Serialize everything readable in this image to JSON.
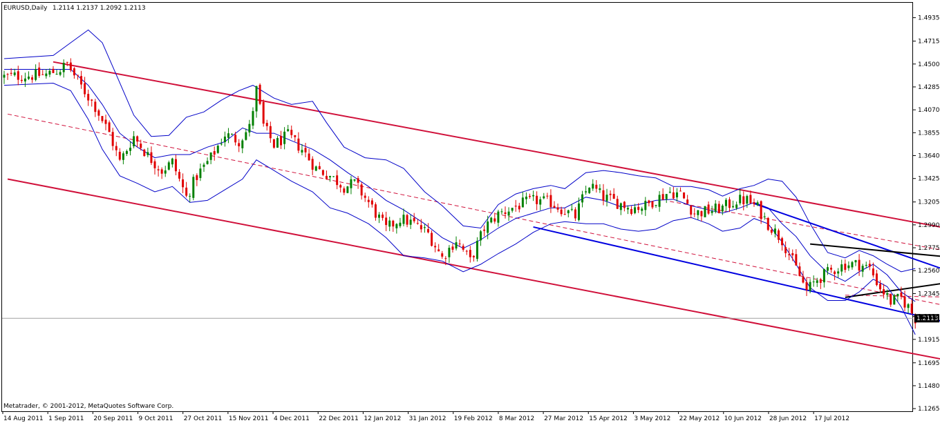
{
  "window": {
    "title": "EURUSD,Daily",
    "ohlc": "1.2114 1.2137 1.2092 1.2113",
    "copyright": "Metatrader, © 2001-2012, MetaQuotes Software Corp."
  },
  "colors": {
    "background": "#ffffff",
    "axis": "#000000",
    "bull": "#008000",
    "bear": "#e00000",
    "channel": "#d0103a",
    "bollinger": "#0000c8",
    "wedge": "#0000e0",
    "triangle": "#000000",
    "price_line": "#a0a0a0",
    "price_label_bg": "#000000",
    "price_label_fg": "#ffffff"
  },
  "chart_data": {
    "type": "candlestick",
    "symbol": "EURUSD",
    "timeframe": "Daily",
    "last_price": "1.2113",
    "ylim": [
      1.124,
      1.5075
    ],
    "y_ticks": [
      "1.4935",
      "1.4715",
      "1.4500",
      "1.4285",
      "1.4070",
      "1.3855",
      "1.3640",
      "1.3425",
      "1.3205",
      "1.2990",
      "1.2775",
      "1.2560",
      "1.2345",
      "1.2130",
      "1.1915",
      "1.1695",
      "1.1480",
      "1.1265"
    ],
    "x_labels": [
      "14 Aug 2011",
      "1 Sep 2011",
      "20 Sep 2011",
      "9 Oct 2011",
      "27 Oct 2011",
      "15 Nov 2011",
      "4 Dec 2011",
      "22 Dec 2011",
      "12 Jan 2012",
      "31 Jan 2012",
      "19 Feb 2012",
      "8 Mar 2012",
      "27 Mar 2012",
      "15 Apr 2012",
      "3 May 2012",
      "22 May 2012",
      "10 Jun 2012",
      "28 Jun 2012",
      "17 Jul 2012"
    ],
    "bar_count": 250,
    "close_path": [
      [
        0,
        1.438
      ],
      [
        12,
        1.44
      ],
      [
        16,
        1.445
      ],
      [
        18,
        1.45
      ],
      [
        22,
        1.429
      ],
      [
        26,
        1.41
      ],
      [
        30,
        1.385
      ],
      [
        33,
        1.358
      ],
      [
        37,
        1.382
      ],
      [
        41,
        1.364
      ],
      [
        45,
        1.35
      ],
      [
        48,
        1.358
      ],
      [
        52,
        1.325
      ],
      [
        55,
        1.345
      ],
      [
        59,
        1.362
      ],
      [
        63,
        1.384
      ],
      [
        67,
        1.378
      ],
      [
        70,
        1.39
      ],
      [
        72,
        1.426
      ],
      [
        74,
        1.392
      ],
      [
        77,
        1.374
      ],
      [
        81,
        1.383
      ],
      [
        85,
        1.37
      ],
      [
        89,
        1.352
      ],
      [
        93,
        1.345
      ],
      [
        97,
        1.335
      ],
      [
        100,
        1.338
      ],
      [
        104,
        1.32
      ],
      [
        109,
        1.295
      ],
      [
        113,
        1.305
      ],
      [
        117,
        1.3
      ],
      [
        121,
        1.291
      ],
      [
        125,
        1.268
      ],
      [
        129,
        1.285
      ],
      [
        133,
        1.265
      ],
      [
        137,
        1.296
      ],
      [
        141,
        1.309
      ],
      [
        145,
        1.315
      ],
      [
        149,
        1.32
      ],
      [
        152,
        1.322
      ],
      [
        156,
        1.32
      ],
      [
        160,
        1.312
      ],
      [
        163,
        1.307
      ],
      [
        165,
        1.323
      ],
      [
        167,
        1.337
      ],
      [
        171,
        1.325
      ],
      [
        175,
        1.32
      ],
      [
        179,
        1.315
      ],
      [
        183,
        1.317
      ],
      [
        187,
        1.325
      ],
      [
        190,
        1.33
      ],
      [
        193,
        1.328
      ],
      [
        197,
        1.31
      ],
      [
        201,
        1.312
      ],
      [
        205,
        1.315
      ],
      [
        209,
        1.322
      ],
      [
        212,
        1.322
      ],
      [
        215,
        1.315
      ],
      [
        218,
        1.3
      ],
      [
        222,
        1.285
      ],
      [
        226,
        1.258
      ],
      [
        229,
        1.237
      ],
      [
        232,
        1.248
      ],
      [
        236,
        1.256
      ],
      [
        240,
        1.262
      ],
      [
        244,
        1.262
      ],
      [
        247,
        1.258
      ],
      [
        250,
        1.24
      ],
      [
        253,
        1.227
      ],
      [
        256,
        1.23
      ],
      [
        258,
        1.222
      ],
      [
        260,
        1.2113
      ]
    ],
    "bollinger_bands": {
      "upper": [
        [
          0,
          1.455
        ],
        [
          14,
          1.458
        ],
        [
          19,
          1.47
        ],
        [
          24,
          1.482
        ],
        [
          28,
          1.47
        ],
        [
          32,
          1.44
        ],
        [
          37,
          1.402
        ],
        [
          42,
          1.382
        ],
        [
          47,
          1.383
        ],
        [
          52,
          1.4
        ],
        [
          57,
          1.405
        ],
        [
          62,
          1.416
        ],
        [
          67,
          1.425
        ],
        [
          71,
          1.43
        ],
        [
          77,
          1.418
        ],
        [
          82,
          1.412
        ],
        [
          88,
          1.415
        ],
        [
          92,
          1.395
        ],
        [
          97,
          1.372
        ],
        [
          103,
          1.362
        ],
        [
          109,
          1.36
        ],
        [
          114,
          1.352
        ],
        [
          120,
          1.33
        ],
        [
          125,
          1.317
        ],
        [
          131,
          1.298
        ],
        [
          136,
          1.296
        ],
        [
          141,
          1.318
        ],
        [
          146,
          1.328
        ],
        [
          151,
          1.333
        ],
        [
          156,
          1.336
        ],
        [
          160,
          1.333
        ],
        [
          166,
          1.348
        ],
        [
          171,
          1.35
        ],
        [
          176,
          1.348
        ],
        [
          181,
          1.345
        ],
        [
          186,
          1.343
        ],
        [
          191,
          1.335
        ],
        [
          196,
          1.335
        ],
        [
          201,
          1.332
        ],
        [
          205,
          1.326
        ],
        [
          210,
          1.333
        ],
        [
          214,
          1.336
        ],
        [
          218,
          1.342
        ],
        [
          222,
          1.34
        ],
        [
          226,
          1.325
        ],
        [
          230,
          1.3
        ],
        [
          235,
          1.273
        ],
        [
          240,
          1.268
        ],
        [
          244,
          1.275
        ],
        [
          248,
          1.27
        ],
        [
          252,
          1.262
        ],
        [
          256,
          1.255
        ],
        [
          260,
          1.258
        ]
      ],
      "middle": [
        [
          0,
          1.445
        ],
        [
          14,
          1.445
        ],
        [
          19,
          1.445
        ],
        [
          24,
          1.43
        ],
        [
          28,
          1.412
        ],
        [
          33,
          1.385
        ],
        [
          38,
          1.372
        ],
        [
          43,
          1.362
        ],
        [
          48,
          1.365
        ],
        [
          53,
          1.365
        ],
        [
          58,
          1.372
        ],
        [
          63,
          1.377
        ],
        [
          68,
          1.39
        ],
        [
          72,
          1.385
        ],
        [
          77,
          1.385
        ],
        [
          82,
          1.378
        ],
        [
          88,
          1.37
        ],
        [
          93,
          1.36
        ],
        [
          98,
          1.348
        ],
        [
          104,
          1.335
        ],
        [
          109,
          1.322
        ],
        [
          114,
          1.313
        ],
        [
          120,
          1.3
        ],
        [
          125,
          1.287
        ],
        [
          131,
          1.277
        ],
        [
          136,
          1.285
        ],
        [
          141,
          1.296
        ],
        [
          146,
          1.305
        ],
        [
          151,
          1.31
        ],
        [
          156,
          1.315
        ],
        [
          160,
          1.315
        ],
        [
          166,
          1.325
        ],
        [
          171,
          1.322
        ],
        [
          176,
          1.316
        ],
        [
          181,
          1.318
        ],
        [
          186,
          1.322
        ],
        [
          191,
          1.323
        ],
        [
          196,
          1.317
        ],
        [
          201,
          1.313
        ],
        [
          205,
          1.31
        ],
        [
          210,
          1.315
        ],
        [
          214,
          1.32
        ],
        [
          218,
          1.315
        ],
        [
          222,
          1.3
        ],
        [
          226,
          1.288
        ],
        [
          230,
          1.27
        ],
        [
          235,
          1.254
        ],
        [
          240,
          1.246
        ],
        [
          244,
          1.255
        ],
        [
          248,
          1.262
        ],
        [
          252,
          1.252
        ],
        [
          256,
          1.236
        ],
        [
          260,
          1.227
        ]
      ],
      "lower": [
        [
          0,
          1.43
        ],
        [
          14,
          1.432
        ],
        [
          19,
          1.425
        ],
        [
          24,
          1.398
        ],
        [
          28,
          1.37
        ],
        [
          33,
          1.345
        ],
        [
          38,
          1.338
        ],
        [
          43,
          1.33
        ],
        [
          48,
          1.335
        ],
        [
          53,
          1.32
        ],
        [
          58,
          1.322
        ],
        [
          63,
          1.332
        ],
        [
          68,
          1.342
        ],
        [
          72,
          1.36
        ],
        [
          77,
          1.35
        ],
        [
          82,
          1.34
        ],
        [
          88,
          1.33
        ],
        [
          93,
          1.315
        ],
        [
          98,
          1.31
        ],
        [
          104,
          1.3
        ],
        [
          109,
          1.287
        ],
        [
          114,
          1.27
        ],
        [
          120,
          1.268
        ],
        [
          125,
          1.265
        ],
        [
          131,
          1.255
        ],
        [
          136,
          1.262
        ],
        [
          141,
          1.272
        ],
        [
          146,
          1.281
        ],
        [
          151,
          1.292
        ],
        [
          156,
          1.3
        ],
        [
          160,
          1.302
        ],
        [
          166,
          1.3
        ],
        [
          171,
          1.3
        ],
        [
          176,
          1.295
        ],
        [
          181,
          1.293
        ],
        [
          186,
          1.295
        ],
        [
          191,
          1.303
        ],
        [
          196,
          1.306
        ],
        [
          201,
          1.3
        ],
        [
          205,
          1.293
        ],
        [
          210,
          1.296
        ],
        [
          214,
          1.305
        ],
        [
          218,
          1.3
        ],
        [
          222,
          1.283
        ],
        [
          226,
          1.262
        ],
        [
          230,
          1.24
        ],
        [
          235,
          1.228
        ],
        [
          240,
          1.228
        ],
        [
          244,
          1.236
        ],
        [
          248,
          1.248
        ],
        [
          252,
          1.241
        ],
        [
          256,
          1.222
        ],
        [
          260,
          1.196
        ]
      ]
    },
    "trendlines": [
      {
        "id": "channel-upper",
        "style": "solid",
        "color": "channel",
        "x1": 14,
        "y1": 1.452,
        "x2": 321,
        "y2": 1.264
      },
      {
        "id": "channel-mid",
        "style": "dashed",
        "color": "channel",
        "x1": 1,
        "y1": 1.403,
        "x2": 321,
        "y2": 1.188
      },
      {
        "id": "channel-lower",
        "style": "solid",
        "color": "channel",
        "x1": 1,
        "y1": 1.342,
        "x2": 321,
        "y2": 1.139
      },
      {
        "id": "channel-mid-2",
        "style": "dashed",
        "color": "channel",
        "x1": 240,
        "y1": 1.233,
        "x2": 321,
        "y2": 1.228
      },
      {
        "id": "channel-mid-3",
        "style": "dashed",
        "color": "channel",
        "x1": 190,
        "y1": 1.321,
        "x2": 321,
        "y2": 1.244
      },
      {
        "id": "wedge-upper",
        "style": "solid",
        "color": "wedge",
        "x1": 214,
        "y1": 1.319,
        "x2": 321,
        "y2": 1.197
      },
      {
        "id": "wedge-lower",
        "style": "solid",
        "color": "wedge",
        "x1": 151,
        "y1": 1.297,
        "x2": 321,
        "y2": 1.168
      },
      {
        "id": "triangle-top",
        "style": "solid",
        "color": "triangle",
        "x1": 230,
        "y1": 1.281,
        "x2": 321,
        "y2": 1.253
      },
      {
        "id": "triangle-bottom",
        "style": "solid",
        "color": "triangle",
        "x1": 240,
        "y1": 1.231,
        "x2": 321,
        "y2": 1.269
      }
    ]
  }
}
